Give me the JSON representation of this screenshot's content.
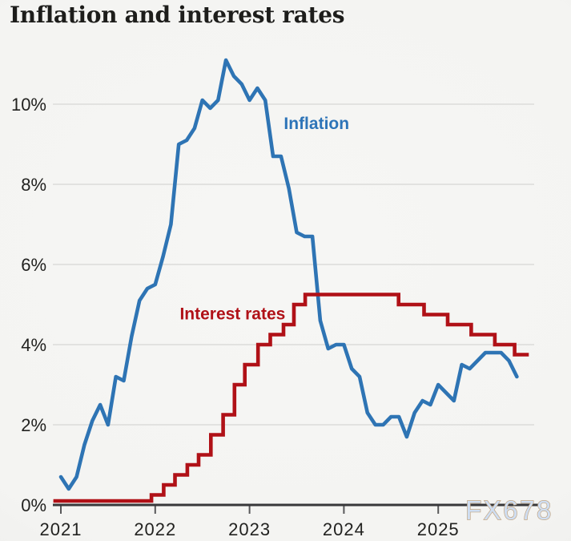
{
  "title": "Inflation and interest rates",
  "watermark": "FX678",
  "labels": {
    "inflation": "Inflation",
    "interest": "Interest rates"
  },
  "colors": {
    "inflation": "#2e74b4",
    "inflation_label": "#2d74b8",
    "interest": "#b01117",
    "interest_label": "#b01117",
    "grid": "#dcdcda",
    "axis": "#38383a",
    "tick": "#58585a",
    "text": "#222220",
    "watermark_fill": "#cfdef2",
    "watermark_outline": "#c0a584"
  },
  "chart_data": {
    "type": "line",
    "title": "Inflation and interest rates",
    "xlabel": "",
    "ylabel": "",
    "grid": "horizontal",
    "legend_position": "inline-annotations",
    "x_axis": {
      "ticks": [
        2021,
        2022,
        2023,
        2024,
        2025
      ],
      "tick_labels": [
        "2021",
        "2022",
        "2023",
        "2024",
        "2025"
      ],
      "range": [
        2020.92,
        2026.0
      ]
    },
    "y_axis": {
      "ticks": [
        0,
        2,
        4,
        6,
        8,
        10
      ],
      "tick_labels": [
        "0%",
        "2%",
        "4%",
        "6%",
        "8%",
        "10%"
      ],
      "range": [
        0,
        11.5
      ],
      "unit": "percent"
    },
    "series": [
      {
        "name": "Inflation",
        "type": "line",
        "x_start": 2021.0,
        "x_step_years": 0.0833333,
        "months": "Jan 2021 - Nov 2025",
        "values": [
          0.7,
          0.4,
          0.7,
          1.5,
          2.1,
          2.5,
          2.0,
          3.2,
          3.1,
          4.2,
          5.1,
          5.4,
          5.5,
          6.2,
          7.0,
          9.0,
          9.1,
          9.4,
          10.1,
          9.9,
          10.1,
          11.1,
          10.7,
          10.5,
          10.1,
          10.4,
          10.1,
          8.7,
          8.7,
          7.9,
          6.8,
          6.7,
          6.7,
          4.6,
          3.9,
          4.0,
          4.0,
          3.4,
          3.2,
          2.3,
          2.0,
          2.0,
          2.2,
          2.2,
          1.7,
          2.3,
          2.6,
          2.5,
          3.0,
          2.8,
          2.6,
          3.5,
          3.4,
          3.6,
          3.8,
          3.8,
          3.8,
          3.6,
          3.2
        ],
        "label_pos": {
          "x": 2023.71,
          "y": 9.52
        }
      },
      {
        "name": "Interest rates",
        "type": "step",
        "changes": [
          [
            2020.92,
            0.1
          ],
          [
            2021.96,
            0.25
          ],
          [
            2022.09,
            0.5
          ],
          [
            2022.21,
            0.75
          ],
          [
            2022.34,
            1.0
          ],
          [
            2022.46,
            1.25
          ],
          [
            2022.59,
            1.75
          ],
          [
            2022.72,
            2.25
          ],
          [
            2022.84,
            3.0
          ],
          [
            2022.95,
            3.5
          ],
          [
            2023.09,
            4.0
          ],
          [
            2023.22,
            4.25
          ],
          [
            2023.36,
            4.5
          ],
          [
            2023.47,
            5.0
          ],
          [
            2023.59,
            5.25
          ],
          [
            2024.58,
            5.0
          ],
          [
            2024.85,
            4.75
          ],
          [
            2025.1,
            4.5
          ],
          [
            2025.35,
            4.25
          ],
          [
            2025.6,
            4.0
          ],
          [
            2025.81,
            3.75
          ]
        ],
        "x_end": 2025.96,
        "label_pos": {
          "x": 2022.82,
          "y": 4.77
        }
      }
    ]
  }
}
